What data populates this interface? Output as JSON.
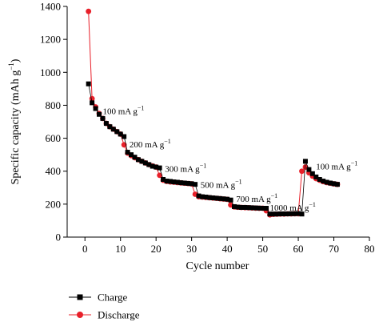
{
  "chart_data": {
    "type": "scatter",
    "xlabel": "Cycle number",
    "ylabel": "Specific capacity (mAh g",
    "ylabel_sup": "−1",
    "ylabel_close": ")",
    "xlim": [
      -5,
      80
    ],
    "ylim": [
      0,
      1400
    ],
    "xticks": [
      0,
      10,
      20,
      30,
      40,
      50,
      60,
      70,
      80
    ],
    "yticks": [
      0,
      200,
      400,
      600,
      800,
      1000,
      1200,
      1400
    ],
    "legend_placement": "bottom-left",
    "grid": false,
    "annotations": [
      {
        "text": "100 mA g",
        "sup": "−1",
        "x": 5,
        "y": 745
      },
      {
        "text": "200 mA g",
        "sup": "−1",
        "x": 12.5,
        "y": 545
      },
      {
        "text": "300 mA g",
        "sup": "−1",
        "x": 22.5,
        "y": 395
      },
      {
        "text": "500 mA g",
        "sup": "−1",
        "x": 32.5,
        "y": 300
      },
      {
        "text": "700 mA g",
        "sup": "−1",
        "x": 42.5,
        "y": 215
      },
      {
        "text": "1000 mA g",
        "sup": "−1",
        "x": 52,
        "y": 160
      },
      {
        "text": "100 mA g",
        "sup": "−1",
        "x": 65,
        "y": 410
      }
    ],
    "series": [
      {
        "name": "Charge",
        "color": "#000000",
        "marker": "square",
        "x": [
          1,
          2,
          3,
          4,
          5,
          6,
          7,
          8,
          9,
          10,
          11,
          12,
          13,
          14,
          15,
          16,
          17,
          18,
          19,
          20,
          21,
          22,
          23,
          24,
          25,
          26,
          27,
          28,
          29,
          30,
          31,
          32,
          33,
          34,
          35,
          36,
          37,
          38,
          39,
          40,
          41,
          42,
          43,
          44,
          45,
          46,
          47,
          48,
          49,
          50,
          51,
          52,
          53,
          54,
          55,
          56,
          57,
          58,
          59,
          60,
          61,
          62,
          63,
          64,
          65,
          66,
          67,
          68,
          69,
          70,
          71
        ],
        "y": [
          930,
          815,
          780,
          745,
          720,
          690,
          670,
          655,
          640,
          625,
          610,
          515,
          500,
          485,
          470,
          460,
          450,
          440,
          430,
          425,
          420,
          350,
          340,
          338,
          335,
          333,
          330,
          328,
          326,
          324,
          320,
          250,
          245,
          243,
          240,
          238,
          236,
          234,
          232,
          230,
          225,
          185,
          182,
          180,
          180,
          179,
          178,
          177,
          176,
          175,
          175,
          140,
          140,
          140,
          141,
          141,
          141,
          142,
          142,
          143,
          140,
          460,
          410,
          385,
          365,
          350,
          340,
          333,
          328,
          324,
          320
        ]
      },
      {
        "name": "Discharge",
        "color": "#e8202a",
        "marker": "circle",
        "x": [
          1,
          2,
          3,
          4,
          5,
          6,
          7,
          8,
          9,
          10,
          11,
          12,
          13,
          14,
          15,
          16,
          17,
          18,
          19,
          20,
          21,
          22,
          23,
          24,
          25,
          26,
          27,
          28,
          29,
          30,
          31,
          32,
          33,
          34,
          35,
          36,
          37,
          38,
          39,
          40,
          41,
          42,
          43,
          44,
          45,
          46,
          47,
          48,
          49,
          50,
          51,
          52,
          53,
          54,
          55,
          56,
          57,
          58,
          59,
          60,
          61,
          62,
          63,
          64,
          65,
          66,
          67,
          68,
          69,
          70,
          71
        ],
        "y": [
          1370,
          840,
          790,
          750,
          720,
          690,
          670,
          655,
          640,
          625,
          560,
          510,
          495,
          482,
          470,
          460,
          450,
          440,
          432,
          425,
          375,
          345,
          338,
          335,
          333,
          331,
          329,
          327,
          325,
          323,
          260,
          245,
          243,
          241,
          239,
          237,
          235,
          233,
          231,
          229,
          195,
          183,
          181,
          180,
          179,
          178,
          177,
          176,
          175,
          175,
          160,
          135,
          138,
          139,
          140,
          140,
          141,
          141,
          142,
          142,
          400,
          425,
          390,
          370,
          355,
          345,
          337,
          331,
          327,
          323,
          320
        ]
      }
    ]
  }
}
